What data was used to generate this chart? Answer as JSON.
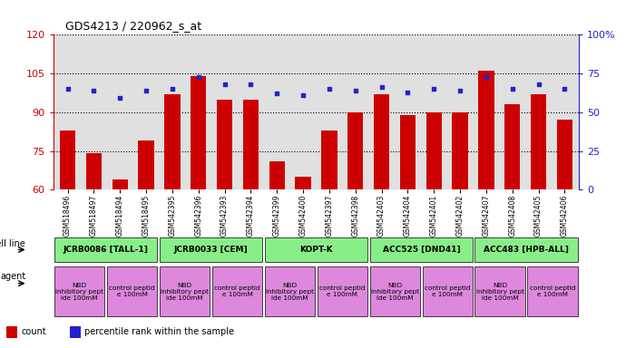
{
  "title": "GDS4213 / 220962_s_at",
  "samples": [
    "GSM518496",
    "GSM518497",
    "GSM518494",
    "GSM518495",
    "GSM542395",
    "GSM542396",
    "GSM542393",
    "GSM542394",
    "GSM542399",
    "GSM542400",
    "GSM542397",
    "GSM542398",
    "GSM542403",
    "GSM542404",
    "GSM542401",
    "GSM542402",
    "GSM542407",
    "GSM542408",
    "GSM542405",
    "GSM542406"
  ],
  "counts": [
    83,
    74,
    64,
    79,
    97,
    104,
    95,
    95,
    71,
    65,
    83,
    90,
    97,
    89,
    90,
    90,
    106,
    93,
    97,
    87
  ],
  "percentiles": [
    65,
    64,
    59,
    64,
    65,
    73,
    68,
    68,
    62,
    61,
    65,
    64,
    66,
    63,
    65,
    64,
    73,
    65,
    68,
    65
  ],
  "ylim_left": [
    60,
    120
  ],
  "ylim_right": [
    0,
    100
  ],
  "yticks_left": [
    60,
    75,
    90,
    105,
    120
  ],
  "yticks_right": [
    0,
    25,
    50,
    75,
    100
  ],
  "cell_lines": [
    {
      "label": "JCRB0086 [TALL-1]",
      "start": 0,
      "end": 4
    },
    {
      "label": "JCRB0033 [CEM]",
      "start": 4,
      "end": 8
    },
    {
      "label": "KOPT-K",
      "start": 8,
      "end": 12
    },
    {
      "label": "ACC525 [DND41]",
      "start": 12,
      "end": 16
    },
    {
      "label": "ACC483 [HPB-ALL]",
      "start": 16,
      "end": 20
    }
  ],
  "agents": [
    {
      "label": "NBD\ninhibitory pept\nide 100mM",
      "start": 0,
      "end": 2
    },
    {
      "label": "control peptid\ne 100mM",
      "start": 2,
      "end": 4
    },
    {
      "label": "NBD\ninhibitory pept\nide 100mM",
      "start": 4,
      "end": 6
    },
    {
      "label": "control peptid\ne 100mM",
      "start": 6,
      "end": 8
    },
    {
      "label": "NBD\ninhibitory pept\nide 100mM",
      "start": 8,
      "end": 10
    },
    {
      "label": "control peptid\ne 100mM",
      "start": 10,
      "end": 12
    },
    {
      "label": "NBD\ninhibitory pept\nide 100mM",
      "start": 12,
      "end": 14
    },
    {
      "label": "control peptid\ne 100mM",
      "start": 14,
      "end": 16
    },
    {
      "label": "NBD\ninhibitory pept\nide 100mM",
      "start": 16,
      "end": 18
    },
    {
      "label": "control peptid\ne 100mM",
      "start": 18,
      "end": 20
    }
  ],
  "bar_color": "#CC0000",
  "dot_color": "#2222CC",
  "cell_line_color": "#88EE88",
  "agent_color": "#DD88DD",
  "grid_color": "#000000",
  "bg_color": "#E0E0E0",
  "left_axis_color": "#CC0000",
  "right_axis_color": "#2222CC",
  "label_row_bg": "#C8C8C8"
}
